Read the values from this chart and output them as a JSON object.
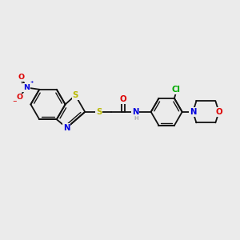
{
  "bg": "#ebebeb",
  "bc": "#111111",
  "lw": 1.3,
  "fs": 6.8,
  "colors": {
    "S": "#b8b800",
    "N": "#0000dd",
    "O": "#dd0000",
    "Cl": "#00aa00",
    "H": "#888888"
  },
  "xlim": [
    0,
    10
  ],
  "ylim": [
    0,
    10
  ]
}
